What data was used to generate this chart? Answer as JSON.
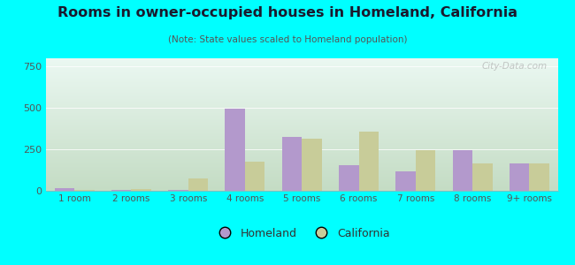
{
  "title": "Rooms in owner-occupied houses in Homeland, California",
  "subtitle": "(Note: State values scaled to Homeland population)",
  "categories": [
    "1 room",
    "2 rooms",
    "3 rooms",
    "4 rooms",
    "5 rooms",
    "6 rooms",
    "7 rooms",
    "8 rooms",
    "9+ rooms"
  ],
  "homeland_values": [
    15,
    8,
    8,
    495,
    325,
    155,
    120,
    245,
    165
  ],
  "california_values": [
    8,
    12,
    75,
    175,
    315,
    355,
    245,
    165,
    165
  ],
  "homeland_color": "#b399cc",
  "california_color": "#c8cc99",
  "background_outer": "#00ffff",
  "plot_bg_top": "#e8f5f0",
  "plot_bg_bottom": "#c8dfc8",
  "ylim": [
    0,
    800
  ],
  "yticks": [
    0,
    250,
    500,
    750
  ],
  "bar_width": 0.35,
  "watermark": "City-Data.com",
  "legend_homeland": "Homeland",
  "legend_california": "California",
  "title_color": "#1a1a2e",
  "subtitle_color": "#555555",
  "tick_color": "#555555"
}
